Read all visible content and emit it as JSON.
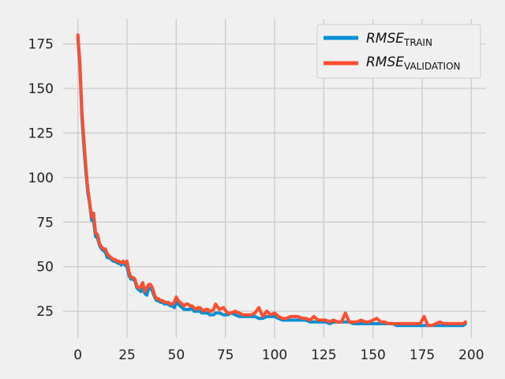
{
  "chart_data": {
    "type": "line",
    "title": "",
    "xlabel": "",
    "ylabel": "",
    "xlim": [
      -7.5,
      207.5
    ],
    "ylim": [
      10,
      189
    ],
    "xticks": [
      0,
      25,
      50,
      75,
      100,
      125,
      150,
      175,
      200
    ],
    "yticks": [
      25,
      50,
      75,
      100,
      125,
      150,
      175
    ],
    "grid": true,
    "legend_position": "top-right",
    "series": [
      {
        "name_main": "RMSE",
        "name_sub": "TRAIN",
        "color": "#008fd5",
        "x": [
          0,
          1,
          2,
          3,
          4,
          5,
          6,
          7,
          8,
          9,
          10,
          11,
          12,
          13,
          14,
          15,
          16,
          17,
          18,
          19,
          20,
          21,
          22,
          23,
          24,
          25,
          26,
          27,
          28,
          29,
          30,
          31,
          32,
          33,
          34,
          35,
          36,
          37,
          38,
          39,
          40,
          41,
          42,
          43,
          44,
          45,
          46,
          47,
          48,
          49,
          50,
          51,
          52,
          53,
          54,
          55,
          56,
          57,
          58,
          59,
          60,
          61,
          62,
          63,
          64,
          65,
          66,
          67,
          68,
          69,
          70,
          72,
          74,
          76,
          78,
          80,
          82,
          84,
          86,
          88,
          90,
          92,
          94,
          96,
          98,
          100,
          102,
          104,
          106,
          108,
          110,
          112,
          114,
          116,
          118,
          120,
          122,
          124,
          126,
          128,
          130,
          132,
          134,
          136,
          138,
          140,
          142,
          144,
          146,
          148,
          150,
          152,
          154,
          156,
          158,
          160,
          162,
          164,
          166,
          168,
          170,
          172,
          174,
          176,
          178,
          180,
          182,
          184,
          186,
          188,
          190,
          192,
          194,
          196,
          197
        ],
        "y": [
          178,
          163,
          135,
          118,
          104,
          92,
          85,
          76,
          76,
          67,
          66,
          62,
          60,
          59,
          58,
          55,
          55,
          54,
          53,
          53,
          52,
          52,
          51,
          52,
          51,
          50,
          45,
          43,
          43,
          42,
          38,
          37,
          36,
          38,
          35,
          34,
          38,
          38,
          36,
          33,
          31,
          31,
          30,
          30,
          29,
          29,
          29,
          28,
          28,
          27,
          30,
          29,
          28,
          27,
          26,
          26,
          26,
          26,
          27,
          25,
          25,
          25,
          25,
          24,
          24,
          24,
          24,
          23,
          23,
          23,
          24,
          24,
          23,
          23,
          24,
          23,
          22,
          22,
          22,
          22,
          22,
          21,
          21,
          22,
          22,
          22,
          21,
          20,
          20,
          20,
          20,
          20,
          20,
          20,
          19,
          19,
          19,
          19,
          19,
          18,
          19,
          19,
          19,
          19,
          19,
          18,
          18,
          18,
          18,
          18,
          18,
          18,
          18,
          18,
          18,
          18,
          17,
          17,
          17,
          17,
          17,
          17,
          17,
          17,
          17,
          17,
          17,
          17,
          17,
          17,
          17,
          17,
          17,
          17,
          18
        ]
      },
      {
        "name_main": "RMSE",
        "name_sub": "VALIDATION",
        "color": "#fc4f30",
        "x": [
          0,
          1,
          2,
          3,
          4,
          5,
          6,
          7,
          8,
          9,
          10,
          11,
          12,
          13,
          14,
          15,
          16,
          17,
          18,
          19,
          20,
          21,
          22,
          23,
          24,
          25,
          26,
          27,
          28,
          29,
          30,
          31,
          32,
          33,
          34,
          35,
          36,
          37,
          38,
          39,
          40,
          41,
          42,
          43,
          44,
          45,
          46,
          47,
          48,
          49,
          50,
          51,
          52,
          53,
          54,
          55,
          56,
          57,
          58,
          59,
          60,
          61,
          62,
          63,
          64,
          65,
          66,
          67,
          68,
          69,
          70,
          72,
          74,
          76,
          78,
          80,
          82,
          84,
          86,
          88,
          90,
          92,
          94,
          96,
          98,
          100,
          102,
          104,
          106,
          108,
          110,
          112,
          114,
          116,
          118,
          120,
          122,
          124,
          126,
          128,
          130,
          132,
          134,
          136,
          138,
          140,
          142,
          144,
          146,
          148,
          150,
          152,
          154,
          156,
          158,
          160,
          162,
          164,
          166,
          168,
          170,
          172,
          174,
          176,
          178,
          180,
          182,
          184,
          186,
          188,
          190,
          192,
          194,
          196,
          197
        ],
        "y": [
          180,
          165,
          138,
          122,
          107,
          94,
          86,
          78,
          80,
          69,
          68,
          63,
          61,
          60,
          60,
          57,
          56,
          55,
          54,
          54,
          53,
          53,
          52,
          53,
          52,
          53,
          47,
          44,
          44,
          43,
          39,
          38,
          39,
          41,
          36,
          38,
          40,
          40,
          38,
          34,
          32,
          32,
          31,
          31,
          30,
          30,
          30,
          29,
          29,
          30,
          33,
          31,
          30,
          29,
          28,
          29,
          29,
          28,
          28,
          27,
          26,
          27,
          27,
          26,
          25,
          26,
          26,
          25,
          25,
          26,
          29,
          26,
          27,
          24,
          24,
          25,
          24,
          23,
          23,
          23,
          24,
          27,
          22,
          25,
          23,
          24,
          22,
          21,
          21,
          22,
          22,
          22,
          21,
          21,
          20,
          22,
          20,
          20,
          20,
          19,
          20,
          19,
          19,
          24,
          19,
          19,
          19,
          20,
          19,
          19,
          20,
          21,
          19,
          19,
          18,
          18,
          18,
          18,
          18,
          18,
          18,
          18,
          18,
          22,
          17,
          17,
          18,
          19,
          18,
          18,
          18,
          18,
          18,
          18,
          19
        ]
      }
    ]
  }
}
